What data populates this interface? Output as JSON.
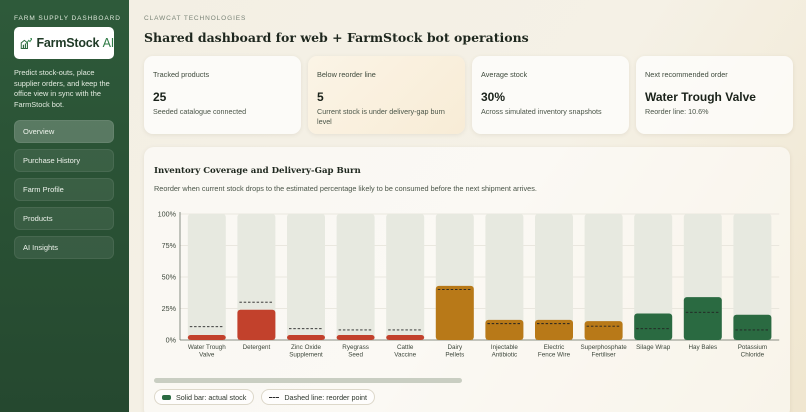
{
  "sidebar": {
    "kicker": "FARM SUPPLY DASHBOARD",
    "logo": {
      "main": "FarmStock",
      "ai": "AI"
    },
    "description": "Predict stock-outs, place supplier orders, and keep the office view in sync with the FarmStock bot.",
    "nav": [
      {
        "label": "Overview",
        "active": true
      },
      {
        "label": "Purchase History",
        "active": false
      },
      {
        "label": "Farm Profile",
        "active": false
      },
      {
        "label": "Products",
        "active": false
      },
      {
        "label": "AI Insights",
        "active": false
      }
    ]
  },
  "header": {
    "kicker": "CLAWCAT TECHNOLOGIES",
    "title": "Shared dashboard for web + FarmStock bot operations"
  },
  "cards": [
    {
      "label": "Tracked products",
      "value": "25",
      "sub": "Seeded catalogue connected"
    },
    {
      "label": "Below reorder line",
      "value": "5",
      "sub": "Current stock is under delivery-gap burn level"
    },
    {
      "label": "Average stock",
      "value": "30%",
      "sub": "Across simulated inventory snapshots"
    },
    {
      "label": "Next recommended order",
      "value": "Water Trough Valve",
      "sub": "Reorder line: 10.6%"
    }
  ],
  "panel": {
    "title": "Inventory Coverage and Delivery-Gap Burn",
    "subtitle": "Reorder when current stock drops to the estimated percentage likely to be consumed before the next shipment arrives."
  },
  "legend": {
    "solid": "Solid bar: actual stock",
    "dashed": "Dashed line: reorder point"
  },
  "colors": {
    "green": "#2a6a41",
    "red": "#c2412c",
    "amber": "#b87918"
  },
  "chart_data": {
    "type": "bar",
    "title": "Inventory Coverage and Delivery-Gap Burn",
    "ylim": [
      0,
      100
    ],
    "yticks": [
      "0%",
      "25%",
      "50%",
      "75%",
      "100%"
    ],
    "ytick_values": [
      0,
      25,
      50,
      75,
      100
    ],
    "grid": true,
    "categories": [
      [
        "Water Trough",
        "Valve"
      ],
      [
        "Detergent"
      ],
      [
        "Zinc Oxide",
        "Supplement"
      ],
      [
        "Ryegrass",
        "Seed"
      ],
      [
        "Cattle",
        "Vaccine"
      ],
      [
        "Dairy",
        "Pellets"
      ],
      [
        "Injectable",
        "Antibiotic"
      ],
      [
        "Electric",
        "Fence Wire"
      ],
      [
        "Superphosphate",
        "Fertiliser"
      ],
      [
        "Silage Wrap"
      ],
      [
        "Hay Bales"
      ],
      [
        "Potassium",
        "Chloride"
      ]
    ],
    "stock": [
      4,
      24,
      4,
      4,
      4,
      43,
      16,
      16,
      15,
      21,
      34,
      20
    ],
    "reorder": [
      10.6,
      30,
      9,
      8,
      8,
      40,
      13,
      13,
      11,
      9,
      22,
      8
    ],
    "status": [
      "red",
      "red",
      "red",
      "red",
      "red",
      "amber",
      "amber",
      "amber",
      "amber",
      "green",
      "green",
      "green"
    ],
    "series": [
      {
        "name": "Solid bar: actual stock"
      },
      {
        "name": "Dashed line: reorder point"
      }
    ]
  }
}
